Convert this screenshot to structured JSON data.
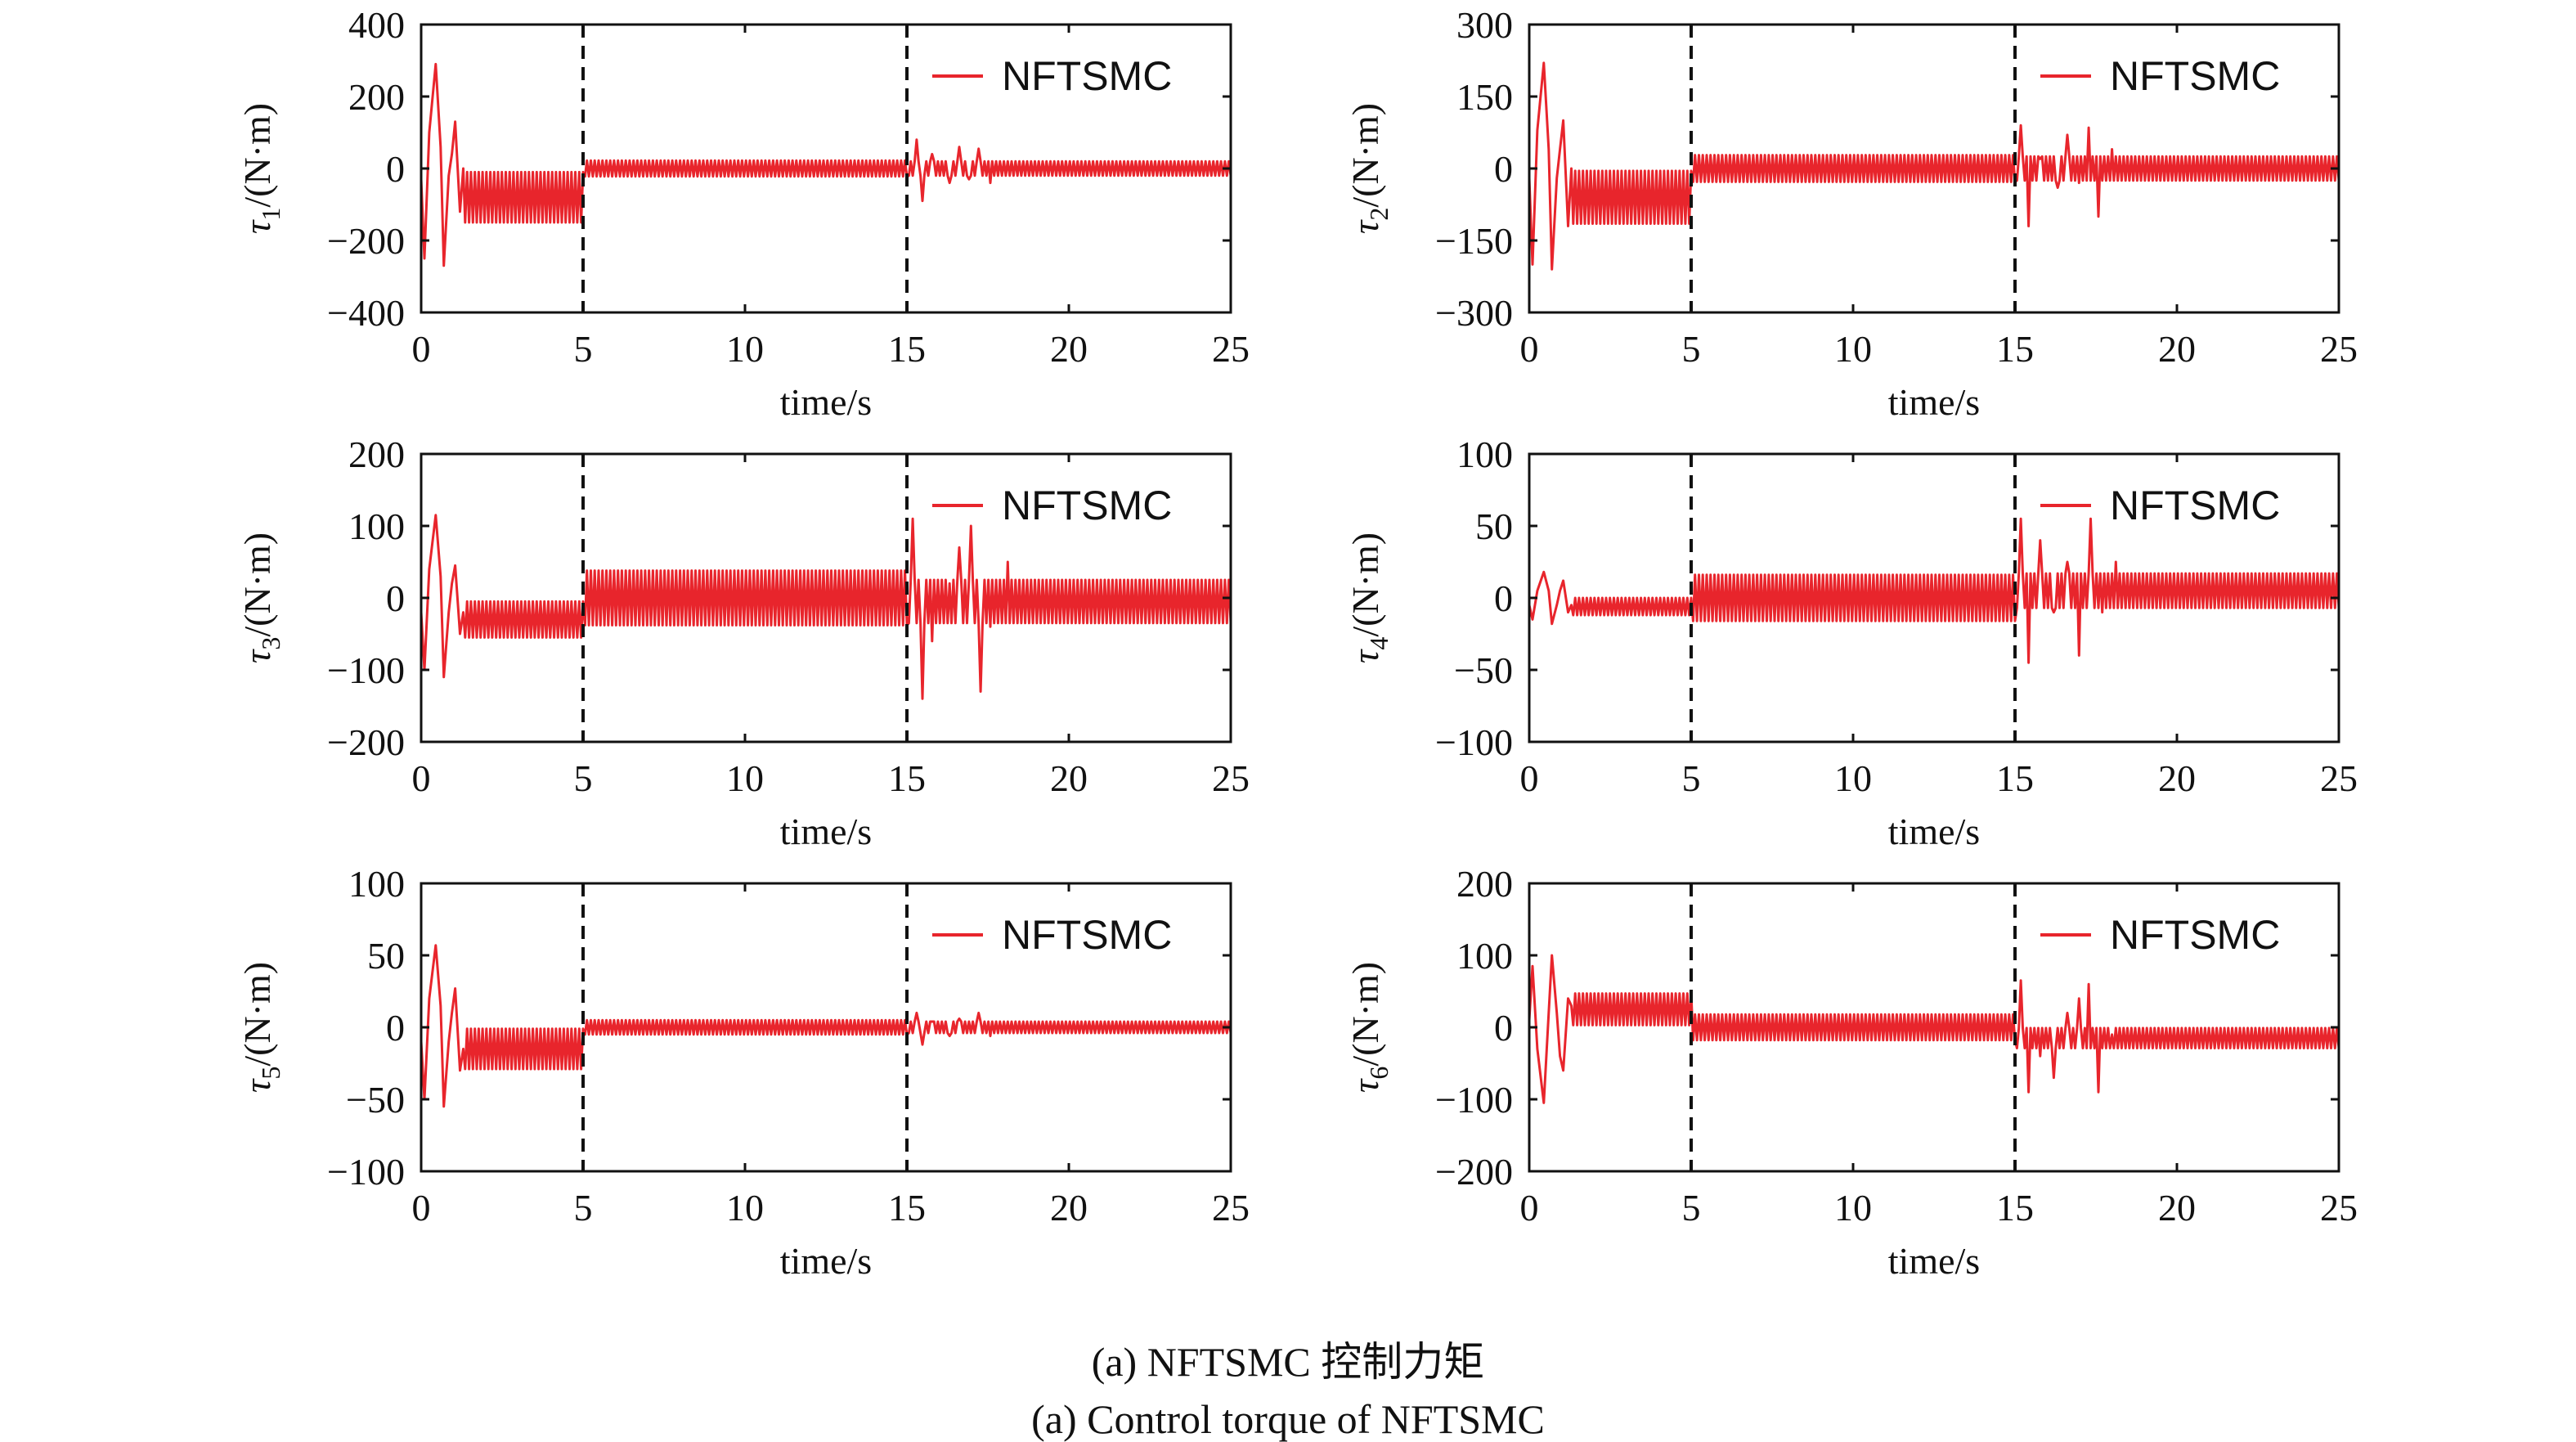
{
  "figure": {
    "caption_cn": "(a) NFTSMC 控制力矩",
    "caption_en": "(a) Control torque of NFTSMC"
  },
  "colors": {
    "series": "#e8252c",
    "event_line": "#111111",
    "axes": "#111111"
  },
  "chart_data": [
    {
      "type": "line",
      "ylabel_var": "τ",
      "ylabel_sub": "1",
      "ylabel_unit": "/(N·m)",
      "xlabel": "time/s",
      "xlim": [
        0,
        25
      ],
      "xticks": [
        "0",
        "5",
        "10",
        "15",
        "20",
        "25"
      ],
      "ylim": [
        -400,
        400
      ],
      "yticks": [
        "400",
        "200",
        "0",
        "−200",
        "−400"
      ],
      "ytick_values": [
        400,
        200,
        0,
        -200,
        -400
      ],
      "legend": {
        "label": "NFTSMC",
        "position": "top-right"
      },
      "grid": false,
      "event_lines": [
        5,
        15
      ],
      "series": [
        {
          "name": "NFTSMC",
          "transient_points": [
            [
              0,
              -30
            ],
            [
              0.1,
              -250
            ],
            [
              0.25,
              100
            ],
            [
              0.45,
              290
            ],
            [
              0.6,
              60
            ],
            [
              0.7,
              -270
            ],
            [
              0.85,
              -20
            ],
            [
              0.95,
              40
            ],
            [
              1.05,
              130
            ],
            [
              1.2,
              -120
            ],
            [
              1.3,
              0
            ]
          ],
          "segments": [
            {
              "start": 1.3,
              "end": 5,
              "center": -80,
              "amp": 70,
              "period": 0.12
            },
            {
              "start": 5,
              "end": 15,
              "center": 0,
              "amp": 22,
              "period": 0.12
            },
            {
              "start": 15,
              "end": 25,
              "center": 0,
              "amp": 20,
              "period": 0.12
            }
          ],
          "bursts": [
            [
              15.3,
              80
            ],
            [
              15.5,
              -90
            ],
            [
              15.8,
              40
            ],
            [
              16.3,
              -40
            ],
            [
              16.6,
              60
            ],
            [
              16.9,
              -30
            ],
            [
              17.2,
              55
            ],
            [
              17.6,
              -40
            ],
            [
              18.0,
              20
            ]
          ]
        }
      ]
    },
    {
      "type": "line",
      "ylabel_var": "τ",
      "ylabel_sub": "2",
      "ylabel_unit": "/(N·m)",
      "xlabel": "time/s",
      "xlim": [
        0,
        25
      ],
      "xticks": [
        "0",
        "5",
        "10",
        "15",
        "20",
        "25"
      ],
      "ylim": [
        -300,
        300
      ],
      "yticks": [
        "300",
        "150",
        "0",
        "−150",
        "−300"
      ],
      "ytick_values": [
        300,
        150,
        0,
        -150,
        -300
      ],
      "legend": {
        "label": "NFTSMC",
        "position": "top-right"
      },
      "grid": false,
      "event_lines": [
        5,
        15
      ],
      "series": [
        {
          "name": "NFTSMC",
          "transient_points": [
            [
              0,
              -20
            ],
            [
              0.1,
              -200
            ],
            [
              0.25,
              80
            ],
            [
              0.45,
              220
            ],
            [
              0.6,
              40
            ],
            [
              0.7,
              -210
            ],
            [
              0.85,
              -20
            ],
            [
              0.95,
              40
            ],
            [
              1.05,
              100
            ],
            [
              1.2,
              -120
            ],
            [
              1.3,
              0
            ]
          ],
          "segments": [
            {
              "start": 1.3,
              "end": 5,
              "center": -60,
              "amp": 55,
              "period": 0.12
            },
            {
              "start": 5,
              "end": 15,
              "center": 0,
              "amp": 28,
              "period": 0.12
            },
            {
              "start": 15,
              "end": 25,
              "center": 0,
              "amp": 25,
              "period": 0.12
            }
          ],
          "bursts": [
            [
              15.2,
              90
            ],
            [
              15.4,
              -120
            ],
            [
              15.8,
              20
            ],
            [
              16.3,
              -40
            ],
            [
              16.6,
              70
            ],
            [
              17.0,
              -30
            ],
            [
              17.3,
              85
            ],
            [
              17.6,
              -100
            ],
            [
              18.0,
              40
            ]
          ]
        }
      ]
    },
    {
      "type": "line",
      "ylabel_var": "τ",
      "ylabel_sub": "3",
      "ylabel_unit": "/(N·m)",
      "xlabel": "time/s",
      "xlim": [
        0,
        25
      ],
      "xticks": [
        "0",
        "5",
        "10",
        "15",
        "20",
        "25"
      ],
      "ylim": [
        -200,
        200
      ],
      "yticks": [
        "200",
        "100",
        "0",
        "−100",
        "−200"
      ],
      "ytick_values": [
        200,
        100,
        0,
        -100,
        -200
      ],
      "legend": {
        "label": "NFTSMC",
        "position": "top-right"
      },
      "grid": false,
      "event_lines": [
        5,
        15
      ],
      "series": [
        {
          "name": "NFTSMC",
          "transient_points": [
            [
              0,
              -20
            ],
            [
              0.1,
              -100
            ],
            [
              0.25,
              40
            ],
            [
              0.45,
              115
            ],
            [
              0.6,
              30
            ],
            [
              0.7,
              -110
            ],
            [
              0.85,
              -20
            ],
            [
              0.95,
              20
            ],
            [
              1.05,
              45
            ],
            [
              1.2,
              -50
            ],
            [
              1.3,
              -20
            ]
          ],
          "segments": [
            {
              "start": 1.3,
              "end": 5,
              "center": -30,
              "amp": 25,
              "period": 0.12
            },
            {
              "start": 5,
              "end": 15,
              "center": 0,
              "amp": 38,
              "period": 0.12
            },
            {
              "start": 15,
              "end": 25,
              "center": -5,
              "amp": 30,
              "period": 0.12
            }
          ],
          "bursts": [
            [
              15.2,
              110
            ],
            [
              15.45,
              -140
            ],
            [
              15.8,
              -60
            ],
            [
              16.3,
              20
            ],
            [
              16.6,
              70
            ],
            [
              17.0,
              100
            ],
            [
              17.3,
              -130
            ],
            [
              17.6,
              -40
            ],
            [
              18.1,
              50
            ]
          ]
        }
      ]
    },
    {
      "type": "line",
      "ylabel_var": "τ",
      "ylabel_sub": "4",
      "ylabel_unit": "/(N·m)",
      "xlabel": "time/s",
      "xlim": [
        0,
        25
      ],
      "xticks": [
        "0",
        "5",
        "10",
        "15",
        "20",
        "25"
      ],
      "ylim": [
        -100,
        100
      ],
      "yticks": [
        "100",
        "50",
        "0",
        "−50",
        "−100"
      ],
      "ytick_values": [
        100,
        50,
        0,
        -50,
        -100
      ],
      "legend": {
        "label": "NFTSMC",
        "position": "top-right"
      },
      "grid": false,
      "event_lines": [
        5,
        15
      ],
      "series": [
        {
          "name": "NFTSMC",
          "transient_points": [
            [
              0,
              -5
            ],
            [
              0.1,
              -15
            ],
            [
              0.25,
              5
            ],
            [
              0.45,
              18
            ],
            [
              0.6,
              5
            ],
            [
              0.7,
              -18
            ],
            [
              0.85,
              -5
            ],
            [
              0.95,
              5
            ],
            [
              1.05,
              12
            ],
            [
              1.2,
              -10
            ],
            [
              1.3,
              -5
            ]
          ],
          "segments": [
            {
              "start": 1.3,
              "end": 5,
              "center": -6,
              "amp": 6,
              "period": 0.12
            },
            {
              "start": 5,
              "end": 15,
              "center": 0,
              "amp": 16,
              "period": 0.12
            },
            {
              "start": 15,
              "end": 25,
              "center": 5,
              "amp": 12,
              "period": 0.12
            }
          ],
          "bursts": [
            [
              15.2,
              55
            ],
            [
              15.4,
              -45
            ],
            [
              15.8,
              40
            ],
            [
              16.2,
              -10
            ],
            [
              16.6,
              25
            ],
            [
              17.0,
              -40
            ],
            [
              17.35,
              55
            ],
            [
              17.7,
              -10
            ],
            [
              18.1,
              25
            ]
          ]
        }
      ]
    },
    {
      "type": "line",
      "ylabel_var": "τ",
      "ylabel_sub": "5",
      "ylabel_unit": "/(N·m)",
      "xlabel": "time/s",
      "xlim": [
        0,
        25
      ],
      "xticks": [
        "0",
        "5",
        "10",
        "15",
        "20",
        "25"
      ],
      "ylim": [
        -100,
        100
      ],
      "yticks": [
        "100",
        "50",
        "0",
        "−50",
        "−100"
      ],
      "ytick_values": [
        100,
        50,
        0,
        -50,
        -100
      ],
      "legend": {
        "label": "NFTSMC",
        "position": "top-right"
      },
      "grid": false,
      "event_lines": [
        5,
        15
      ],
      "series": [
        {
          "name": "NFTSMC",
          "transient_points": [
            [
              0,
              -10
            ],
            [
              0.1,
              -50
            ],
            [
              0.25,
              20
            ],
            [
              0.45,
              57
            ],
            [
              0.6,
              15
            ],
            [
              0.7,
              -55
            ],
            [
              0.85,
              -10
            ],
            [
              0.95,
              10
            ],
            [
              1.05,
              27
            ],
            [
              1.2,
              -30
            ],
            [
              1.3,
              -15
            ]
          ],
          "segments": [
            {
              "start": 1.3,
              "end": 5,
              "center": -15,
              "amp": 14,
              "period": 0.12
            },
            {
              "start": 5,
              "end": 15,
              "center": 0,
              "amp": 5,
              "period": 0.12
            },
            {
              "start": 15,
              "end": 25,
              "center": 0,
              "amp": 4,
              "period": 0.12
            }
          ],
          "bursts": [
            [
              15.3,
              10
            ],
            [
              15.5,
              -12
            ],
            [
              15.8,
              4
            ],
            [
              16.3,
              -6
            ],
            [
              16.6,
              6
            ],
            [
              17.0,
              -4
            ],
            [
              17.2,
              10
            ],
            [
              17.6,
              -6
            ],
            [
              18.0,
              4
            ]
          ]
        }
      ]
    },
    {
      "type": "line",
      "ylabel_var": "τ",
      "ylabel_sub": "6",
      "ylabel_unit": "/(N·m)",
      "xlabel": "time/s",
      "xlim": [
        0,
        25
      ],
      "xticks": [
        "0",
        "5",
        "10",
        "15",
        "20",
        "25"
      ],
      "ylim": [
        -200,
        200
      ],
      "yticks": [
        "200",
        "100",
        "0",
        "−100",
        "−200"
      ],
      "ytick_values": [
        200,
        100,
        0,
        -100,
        -200
      ],
      "legend": {
        "label": "NFTSMC",
        "position": "top-right"
      },
      "grid": false,
      "event_lines": [
        5,
        15
      ],
      "series": [
        {
          "name": "NFTSMC",
          "transient_points": [
            [
              0,
              10
            ],
            [
              0.1,
              85
            ],
            [
              0.25,
              -30
            ],
            [
              0.45,
              -105
            ],
            [
              0.6,
              20
            ],
            [
              0.7,
              100
            ],
            [
              0.85,
              20
            ],
            [
              0.95,
              -40
            ],
            [
              1.05,
              -60
            ],
            [
              1.2,
              40
            ],
            [
              1.3,
              30
            ]
          ],
          "segments": [
            {
              "start": 1.3,
              "end": 5,
              "center": 25,
              "amp": 22,
              "period": 0.12
            },
            {
              "start": 5,
              "end": 15,
              "center": 0,
              "amp": 18,
              "period": 0.12
            },
            {
              "start": 15,
              "end": 25,
              "center": -15,
              "amp": 14,
              "period": 0.12
            }
          ],
          "bursts": [
            [
              15.2,
              65
            ],
            [
              15.4,
              -90
            ],
            [
              15.8,
              -40
            ],
            [
              16.2,
              -70
            ],
            [
              16.6,
              20
            ],
            [
              17.0,
              40
            ],
            [
              17.25,
              60
            ],
            [
              17.6,
              -90
            ],
            [
              18.0,
              -10
            ]
          ]
        }
      ]
    }
  ]
}
